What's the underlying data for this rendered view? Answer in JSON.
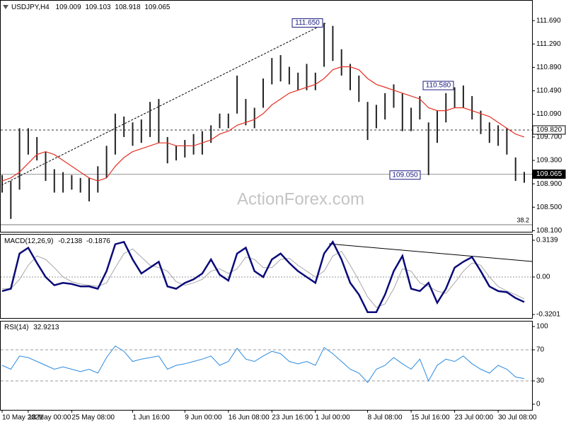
{
  "chart_data": [
    {
      "type": "hlc",
      "title": "USDJPY,H4",
      "ohlc": [
        109.009,
        109.103,
        108.918,
        109.065
      ],
      "color": "#222222",
      "lows": [
        108.75,
        108.3,
        108.8,
        109.4,
        109.3,
        108.95,
        108.75,
        108.75,
        108.8,
        108.75,
        108.6,
        108.75,
        109.0,
        109.4,
        109.7,
        109.55,
        109.6,
        109.7,
        109.6,
        109.25,
        109.3,
        109.35,
        109.4,
        109.4,
        109.6,
        109.85,
        109.85,
        110.1,
        109.9,
        109.85,
        110.2,
        110.6,
        110.65,
        110.6,
        110.5,
        110.5,
        110.5,
        110.9,
        111.0,
        110.75,
        110.5,
        110.3,
        109.65,
        109.85,
        110.0,
        110.2,
        109.8,
        109.8,
        110.0,
        109.05,
        109.6,
        109.95,
        110.2,
        110.2,
        110.0,
        109.75,
        109.6,
        109.55,
        109.4,
        108.95,
        108.918
      ],
      "highs": [
        109.05,
        108.95,
        109.85,
        109.85,
        109.7,
        109.45,
        109.15,
        109.1,
        109.05,
        109.0,
        109.0,
        109.2,
        109.55,
        110.1,
        110.05,
        109.95,
        110.0,
        110.3,
        110.35,
        109.7,
        109.55,
        109.65,
        109.75,
        109.8,
        109.9,
        110.1,
        110.1,
        110.75,
        110.35,
        110.2,
        110.7,
        111.05,
        111.1,
        110.9,
        110.8,
        110.95,
        110.8,
        111.65,
        111.6,
        111.2,
        110.95,
        110.75,
        110.3,
        110.25,
        110.45,
        110.6,
        110.45,
        110.2,
        110.4,
        109.95,
        110.15,
        110.45,
        110.55,
        110.58,
        110.4,
        110.15,
        109.95,
        109.9,
        109.85,
        109.35,
        109.103
      ],
      "ma": {
        "color": "#e53024",
        "values": [
          108.95,
          109.0,
          109.1,
          109.25,
          109.4,
          109.45,
          109.4,
          109.3,
          109.2,
          109.1,
          109.0,
          108.95,
          109.0,
          109.2,
          109.35,
          109.45,
          109.5,
          109.55,
          109.6,
          109.6,
          109.55,
          109.55,
          109.55,
          109.6,
          109.65,
          109.75,
          109.8,
          109.9,
          109.95,
          110.0,
          110.1,
          110.25,
          110.35,
          110.45,
          110.5,
          110.55,
          110.6,
          110.7,
          110.85,
          110.9,
          110.9,
          110.85,
          110.7,
          110.6,
          110.55,
          110.5,
          110.45,
          110.4,
          110.35,
          110.2,
          110.15,
          110.15,
          110.2,
          110.2,
          110.15,
          110.1,
          110.05,
          109.95,
          109.85,
          109.75,
          109.7
        ]
      },
      "ylim": [
        108.08,
        112.03
      ],
      "yticks": [
        {
          "value": 111.69,
          "label": "111.690"
        },
        {
          "value": 111.29,
          "label": "111.290"
        },
        {
          "value": 110.89,
          "label": "110.890"
        },
        {
          "value": 110.49,
          "label": "110.490"
        },
        {
          "value": 110.09,
          "label": "110.090"
        },
        {
          "value": 109.7,
          "label": "109.700"
        },
        {
          "value": 109.3,
          "label": "109.300"
        },
        {
          "value": 108.9,
          "label": "108.900"
        },
        {
          "value": 108.5,
          "label": "108.500"
        },
        {
          "value": 108.1,
          "label": "108.100"
        }
      ],
      "levels": [
        {
          "value": 109.82,
          "label": "109.820"
        },
        {
          "value": 109.065,
          "label": "109.065"
        }
      ],
      "annotations": [
        {
          "value": 111.65,
          "label": "111.650"
        },
        {
          "value": 110.58,
          "label": "110.580"
        },
        {
          "value": 109.05,
          "label": "109.050"
        }
      ],
      "fib_label": "38.2",
      "watermark": "ActionForex.com"
    },
    {
      "type": "line",
      "title": "MACD(12,26,9)",
      "current": [
        -0.2138,
        -0.1876
      ],
      "series": [
        {
          "color": "#0a0a7a",
          "values": [
            -0.12,
            -0.1,
            0.2,
            0.25,
            0.12,
            0.0,
            -0.07,
            -0.05,
            -0.06,
            -0.08,
            -0.08,
            -0.1,
            0.05,
            0.28,
            0.3,
            0.15,
            0.03,
            0.08,
            0.13,
            -0.08,
            -0.1,
            -0.05,
            -0.02,
            0.03,
            0.15,
            0.02,
            -0.03,
            0.2,
            0.25,
            0.05,
            0.0,
            0.15,
            0.2,
            0.12,
            0.05,
            0.0,
            -0.05,
            0.2,
            0.3,
            0.15,
            -0.05,
            -0.15,
            -0.3,
            -0.3,
            -0.15,
            0.05,
            0.18,
            -0.1,
            -0.12,
            -0.05,
            -0.22,
            -0.1,
            0.08,
            0.13,
            0.17,
            0.05,
            -0.08,
            -0.12,
            -0.13,
            -0.18,
            -0.2138
          ]
        },
        {
          "color": "#a8a8a8",
          "values": [
            -0.1,
            -0.1,
            -0.02,
            0.1,
            0.18,
            0.15,
            0.08,
            0.0,
            -0.04,
            -0.06,
            -0.07,
            -0.08,
            -0.05,
            0.08,
            0.2,
            0.24,
            0.17,
            0.1,
            0.08,
            0.05,
            -0.04,
            -0.07,
            -0.05,
            -0.02,
            0.05,
            0.07,
            0.03,
            0.07,
            0.17,
            0.15,
            0.08,
            0.08,
            0.15,
            0.16,
            0.1,
            0.05,
            0.0,
            0.05,
            0.18,
            0.22,
            0.1,
            -0.03,
            -0.17,
            -0.26,
            -0.23,
            -0.1,
            0.07,
            0.05,
            -0.05,
            -0.08,
            -0.12,
            -0.14,
            -0.05,
            0.05,
            0.12,
            0.1,
            0.0,
            -0.08,
            -0.12,
            -0.15,
            -0.1876
          ]
        }
      ],
      "ylim": [
        -0.35,
        0.362
      ],
      "yticks": [
        0.3139,
        {
          "value": 0,
          "label": "0.00"
        },
        -0.3201
      ]
    },
    {
      "type": "line",
      "title": "RSI(14)",
      "current": 32.9213,
      "color": "#2a8ae0",
      "values": [
        50,
        45,
        62,
        60,
        55,
        50,
        45,
        48,
        45,
        42,
        45,
        40,
        60,
        75,
        68,
        55,
        58,
        60,
        62,
        45,
        50,
        52,
        55,
        58,
        62,
        50,
        55,
        72,
        58,
        55,
        62,
        68,
        65,
        55,
        52,
        55,
        50,
        73,
        65,
        55,
        45,
        40,
        28,
        45,
        50,
        60,
        52,
        45,
        58,
        30,
        50,
        58,
        55,
        62,
        52,
        45,
        40,
        50,
        45,
        35,
        32.9213
      ],
      "ylim": [
        -7.3,
        106.4
      ],
      "yticks": [
        100,
        70,
        30,
        0
      ],
      "levels": [
        70,
        30
      ],
      "categories": [
        "10 May 2021",
        null,
        null,
        "18 May 00:00",
        null,
        null,
        null,
        null,
        "25 May 08:00",
        null,
        null,
        null,
        null,
        null,
        null,
        "1 Jun 16:00",
        null,
        null,
        null,
        null,
        null,
        "9 Jun 00:00",
        null,
        null,
        null,
        null,
        "16 Jun 08:00",
        null,
        null,
        null,
        null,
        "23 Jun 16:00",
        null,
        null,
        null,
        null,
        "1 Jul 00:00",
        null,
        null,
        null,
        null,
        null,
        "8 Jul 08:00",
        null,
        null,
        null,
        null,
        "15 Jul 16:00",
        null,
        null,
        null,
        null,
        "23 Jul 00:00",
        null,
        null,
        null,
        null,
        "30 Jul 08:00",
        null,
        null,
        null
      ]
    }
  ]
}
